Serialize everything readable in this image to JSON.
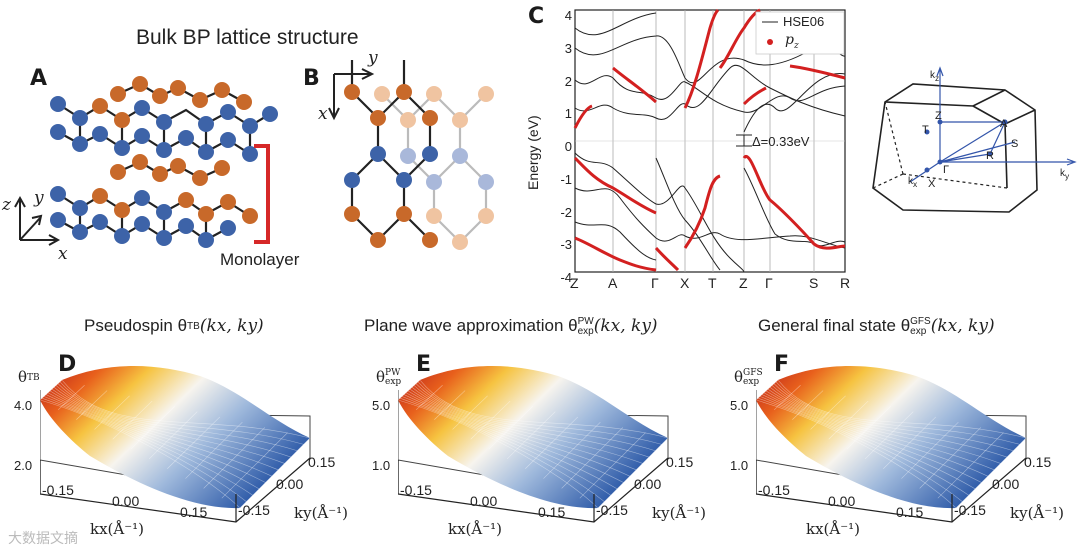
{
  "lattice": {
    "title": "Bulk BP lattice structure",
    "panel_a": "A",
    "panel_b": "B",
    "monolayer_label": "Monolayer",
    "axes_a": {
      "z": "z",
      "y": "y",
      "x": "x"
    },
    "axes_b": {
      "y": "y",
      "x": "x"
    },
    "colors": {
      "atom_blue": "#3d63a8",
      "atom_orange": "#c8692a",
      "atom_light_blue": "#a9b8da",
      "atom_light_orange": "#f0c4a1",
      "bracket": "#d62828"
    }
  },
  "band": {
    "panel_c": "C",
    "ylabel": "Energy (eV)",
    "yticks": [
      "4",
      "3",
      "2",
      "1",
      "0",
      "-1",
      "-2",
      "-3",
      "-4"
    ],
    "kpoints": [
      "Z",
      "A",
      "Γ",
      "X",
      "T",
      "Z",
      "Γ",
      "S",
      "R"
    ],
    "legend_hse": "HSE06",
    "legend_pz": "p",
    "legend_pz_sub": "z",
    "gap_label": "Δ=0.33eV",
    "colors": {
      "hse": "#222222",
      "pz": "#d32020"
    }
  },
  "brillouin": {
    "labels": {
      "kz": "k",
      "kz_sub": "z",
      "ky": "k",
      "ky_sub": "y",
      "kx": "k",
      "kx_sub": "x",
      "z": "Z",
      "t": "T",
      "a": "A",
      "r": "R",
      "s": "S",
      "gamma": "Γ",
      "x": "X"
    },
    "axis_color": "#3355aa"
  },
  "surfaces": [
    {
      "panel": "D",
      "title_prefix": "Pseudospin θ",
      "title_sub": "TB",
      "title_args": "(kx, ky)",
      "zlabel": "θ",
      "zlabel_sub": "TB",
      "zlabel_sup": "",
      "zticks": [
        "4.0",
        "2.0"
      ],
      "xticks": [
        "-0.15",
        "0.00",
        "0.15"
      ],
      "yticks": [
        "0.15",
        "0.00",
        "-0.15"
      ],
      "xlabel": "kx(Å⁻¹)",
      "ylabel": "ky(Å⁻¹)"
    },
    {
      "panel": "E",
      "title_prefix": "Plane wave approximation θ",
      "title_sub": "exp",
      "title_sup": "PW",
      "title_args": "(kx, ky)",
      "zlabel": "θ",
      "zlabel_sub": "exp",
      "zlabel_sup": "PW",
      "zticks": [
        "5.0",
        "1.0"
      ],
      "xticks": [
        "-0.15",
        "0.00",
        "0.15"
      ],
      "yticks": [
        "0.15",
        "0.00",
        "-0.15"
      ],
      "xlabel": "kx(Å⁻¹)",
      "ylabel": "ky(Å⁻¹)"
    },
    {
      "panel": "F",
      "title_prefix": "General final state θ",
      "title_sub": "exp",
      "title_sup": "GFS",
      "title_args": "(kx, ky)",
      "zlabel": "θ",
      "zlabel_sub": "exp",
      "zlabel_sup": "GFS",
      "zticks": [
        "5.0",
        "1.0"
      ],
      "xticks": [
        "-0.15",
        "0.00",
        "0.15"
      ],
      "yticks": [
        "0.15",
        "0.00",
        "-0.15"
      ],
      "xlabel": "kx(Å⁻¹)",
      "ylabel": "ky(Å⁻¹)"
    }
  ],
  "watermark": "大数据文摘"
}
